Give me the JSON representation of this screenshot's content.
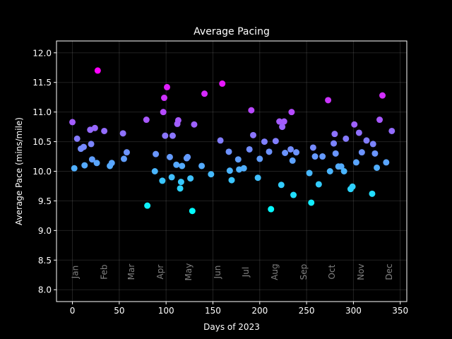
{
  "chart_data": {
    "type": "scatter",
    "title": "Average Pacing",
    "xlabel": "Days of 2023",
    "ylabel": "Average Pace (mins/mile)",
    "xlim": [
      -17,
      357
    ],
    "ylim": [
      7.8,
      12.2
    ],
    "xticks": [
      0,
      50,
      100,
      150,
      200,
      250,
      300,
      350
    ],
    "yticks": [
      8.0,
      8.5,
      9.0,
      9.5,
      10.0,
      10.5,
      11.0,
      11.5,
      12.0
    ],
    "grid": true,
    "colormap": "cool",
    "color_range": [
      9.3,
      11.7
    ],
    "month_labels": [
      {
        "label": "Jan",
        "day": 3
      },
      {
        "label": "Feb",
        "day": 34
      },
      {
        "label": "Mar",
        "day": 63
      },
      {
        "label": "Apr",
        "day": 94
      },
      {
        "label": "May",
        "day": 124
      },
      {
        "label": "Jun",
        "day": 155
      },
      {
        "label": "Jul",
        "day": 185
      },
      {
        "label": "Aug",
        "day": 216
      },
      {
        "label": "Sep",
        "day": 247
      },
      {
        "label": "Oct",
        "day": 277
      },
      {
        "label": "Nov",
        "day": 308
      },
      {
        "label": "Dec",
        "day": 338
      }
    ],
    "points": [
      {
        "x": 0,
        "y": 10.83
      },
      {
        "x": 2,
        "y": 10.05
      },
      {
        "x": 5,
        "y": 10.55
      },
      {
        "x": 9,
        "y": 10.38
      },
      {
        "x": 12,
        "y": 10.41
      },
      {
        "x": 13,
        "y": 10.1
      },
      {
        "x": 19,
        "y": 10.7
      },
      {
        "x": 20,
        "y": 10.46
      },
      {
        "x": 21,
        "y": 10.2
      },
      {
        "x": 24,
        "y": 10.73
      },
      {
        "x": 26,
        "y": 10.14
      },
      {
        "x": 27,
        "y": 11.7
      },
      {
        "x": 34,
        "y": 10.68
      },
      {
        "x": 40,
        "y": 10.09
      },
      {
        "x": 42,
        "y": 10.14
      },
      {
        "x": 54,
        "y": 10.64
      },
      {
        "x": 55,
        "y": 10.21
      },
      {
        "x": 58,
        "y": 10.32
      },
      {
        "x": 79,
        "y": 10.87
      },
      {
        "x": 80,
        "y": 9.42
      },
      {
        "x": 88,
        "y": 10.0
      },
      {
        "x": 89,
        "y": 10.29
      },
      {
        "x": 96,
        "y": 9.84
      },
      {
        "x": 97,
        "y": 11.0
      },
      {
        "x": 98,
        "y": 11.24
      },
      {
        "x": 99,
        "y": 10.6
      },
      {
        "x": 101,
        "y": 11.42
      },
      {
        "x": 104,
        "y": 10.24
      },
      {
        "x": 106,
        "y": 9.9
      },
      {
        "x": 107,
        "y": 10.6
      },
      {
        "x": 111,
        "y": 10.11
      },
      {
        "x": 112,
        "y": 10.8
      },
      {
        "x": 113,
        "y": 10.86
      },
      {
        "x": 115,
        "y": 9.71
      },
      {
        "x": 116,
        "y": 9.82
      },
      {
        "x": 117,
        "y": 10.09
      },
      {
        "x": 122,
        "y": 10.22
      },
      {
        "x": 123,
        "y": 10.24
      },
      {
        "x": 126,
        "y": 9.88
      },
      {
        "x": 128,
        "y": 9.33
      },
      {
        "x": 130,
        "y": 10.79
      },
      {
        "x": 138,
        "y": 10.09
      },
      {
        "x": 141,
        "y": 11.31
      },
      {
        "x": 148,
        "y": 9.95
      },
      {
        "x": 158,
        "y": 10.52
      },
      {
        "x": 160,
        "y": 11.48
      },
      {
        "x": 167,
        "y": 10.33
      },
      {
        "x": 168,
        "y": 10.01
      },
      {
        "x": 170,
        "y": 9.85
      },
      {
        "x": 177,
        "y": 10.2
      },
      {
        "x": 178,
        "y": 10.03
      },
      {
        "x": 183,
        "y": 10.05
      },
      {
        "x": 189,
        "y": 10.37
      },
      {
        "x": 191,
        "y": 11.03
      },
      {
        "x": 193,
        "y": 10.61
      },
      {
        "x": 198,
        "y": 9.89
      },
      {
        "x": 200,
        "y": 10.21
      },
      {
        "x": 205,
        "y": 10.5
      },
      {
        "x": 210,
        "y": 10.33
      },
      {
        "x": 212,
        "y": 9.36
      },
      {
        "x": 217,
        "y": 10.51
      },
      {
        "x": 221,
        "y": 10.84
      },
      {
        "x": 223,
        "y": 9.77
      },
      {
        "x": 224,
        "y": 10.75
      },
      {
        "x": 226,
        "y": 10.84
      },
      {
        "x": 227,
        "y": 10.31
      },
      {
        "x": 233,
        "y": 10.37
      },
      {
        "x": 234,
        "y": 11.0
      },
      {
        "x": 235,
        "y": 10.18
      },
      {
        "x": 236,
        "y": 9.6
      },
      {
        "x": 239,
        "y": 10.32
      },
      {
        "x": 253,
        "y": 9.97
      },
      {
        "x": 255,
        "y": 9.47
      },
      {
        "x": 257,
        "y": 10.4
      },
      {
        "x": 259,
        "y": 10.25
      },
      {
        "x": 263,
        "y": 9.78
      },
      {
        "x": 267,
        "y": 10.25
      },
      {
        "x": 273,
        "y": 11.2
      },
      {
        "x": 275,
        "y": 10.0
      },
      {
        "x": 279,
        "y": 10.47
      },
      {
        "x": 280,
        "y": 10.63
      },
      {
        "x": 281,
        "y": 10.3
      },
      {
        "x": 284,
        "y": 10.08
      },
      {
        "x": 287,
        "y": 10.08
      },
      {
        "x": 290,
        "y": 10.0
      },
      {
        "x": 292,
        "y": 10.55
      },
      {
        "x": 297,
        "y": 9.7
      },
      {
        "x": 299,
        "y": 9.74
      },
      {
        "x": 301,
        "y": 10.79
      },
      {
        "x": 303,
        "y": 10.15
      },
      {
        "x": 306,
        "y": 10.65
      },
      {
        "x": 309,
        "y": 10.32
      },
      {
        "x": 314,
        "y": 10.52
      },
      {
        "x": 320,
        "y": 9.62
      },
      {
        "x": 321,
        "y": 10.46
      },
      {
        "x": 323,
        "y": 10.3
      },
      {
        "x": 325,
        "y": 10.06
      },
      {
        "x": 328,
        "y": 10.87
      },
      {
        "x": 331,
        "y": 11.28
      },
      {
        "x": 335,
        "y": 10.15
      },
      {
        "x": 341,
        "y": 10.68
      }
    ]
  }
}
